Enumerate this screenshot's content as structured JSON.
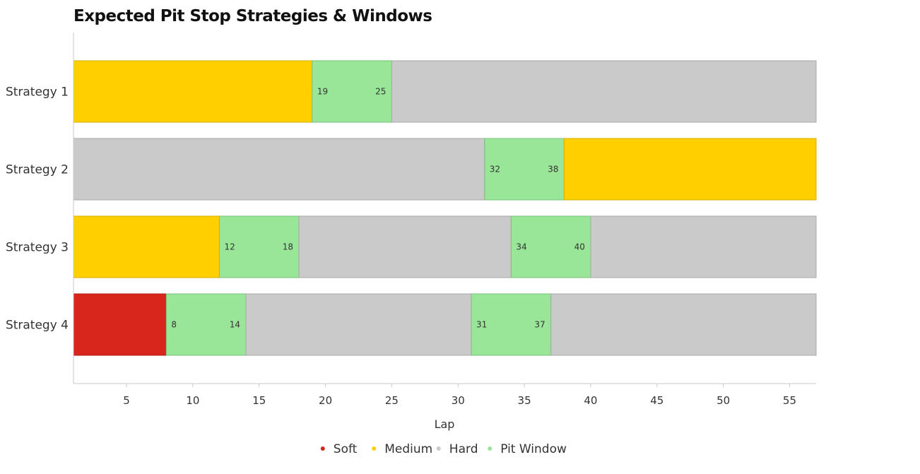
{
  "chart_data": {
    "type": "bar",
    "orientation": "horizontal",
    "stacked": true,
    "title": "Expected Pit Stop Strategies & Windows",
    "xlabel": "Lap",
    "ylabel": "",
    "xlim": [
      1,
      57
    ],
    "xticks": [
      5,
      10,
      15,
      20,
      25,
      30,
      35,
      40,
      45,
      50,
      55
    ],
    "grid": false,
    "legend_position": "bottom",
    "legend": [
      {
        "name": "Soft",
        "color": "#d9261c"
      },
      {
        "name": "Medium",
        "color": "#ffcf00"
      },
      {
        "name": "Hard",
        "color": "#cacaca"
      },
      {
        "name": "Pit Window",
        "color": "#99e699"
      }
    ],
    "categories": [
      "Strategy 1",
      "Strategy 2",
      "Strategy 3",
      "Strategy 4"
    ],
    "strategies": [
      {
        "name": "Strategy 1",
        "segments": [
          {
            "compound": "Medium",
            "start": 1,
            "end": 19
          },
          {
            "compound": "Pit Window",
            "start": 19,
            "end": 25
          },
          {
            "compound": "Hard",
            "start": 25,
            "end": 57
          }
        ],
        "windows": [
          {
            "open": 19,
            "close": 25
          }
        ]
      },
      {
        "name": "Strategy 2",
        "segments": [
          {
            "compound": "Hard",
            "start": 1,
            "end": 32
          },
          {
            "compound": "Pit Window",
            "start": 32,
            "end": 38
          },
          {
            "compound": "Medium",
            "start": 38,
            "end": 57
          }
        ],
        "windows": [
          {
            "open": 32,
            "close": 38
          }
        ]
      },
      {
        "name": "Strategy 3",
        "segments": [
          {
            "compound": "Medium",
            "start": 1,
            "end": 12
          },
          {
            "compound": "Pit Window",
            "start": 12,
            "end": 18
          },
          {
            "compound": "Hard",
            "start": 18,
            "end": 34
          },
          {
            "compound": "Pit Window",
            "start": 34,
            "end": 40
          },
          {
            "compound": "Hard",
            "start": 40,
            "end": 57
          }
        ],
        "windows": [
          {
            "open": 12,
            "close": 18
          },
          {
            "open": 34,
            "close": 40
          }
        ]
      },
      {
        "name": "Strategy 4",
        "segments": [
          {
            "compound": "Soft",
            "start": 1,
            "end": 8
          },
          {
            "compound": "Pit Window",
            "start": 8,
            "end": 14
          },
          {
            "compound": "Hard",
            "start": 14,
            "end": 31
          },
          {
            "compound": "Pit Window",
            "start": 31,
            "end": 37
          },
          {
            "compound": "Hard",
            "start": 37,
            "end": 57
          }
        ],
        "windows": [
          {
            "open": 8,
            "close": 14
          },
          {
            "open": 31,
            "close": 37
          }
        ]
      }
    ]
  }
}
